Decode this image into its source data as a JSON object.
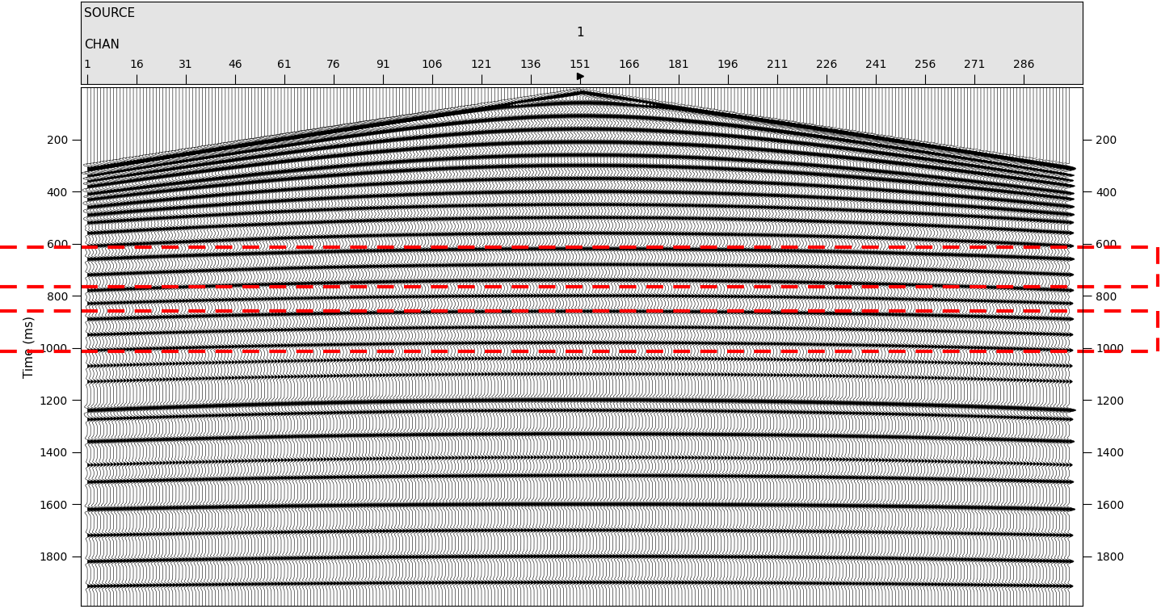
{
  "chart_data": {
    "type": "seismic_gather",
    "source_label": "SOURCE",
    "source": 1,
    "source_channel": 151,
    "xlabel": "CHAN",
    "ylabel": "Time (ms)",
    "n_channels": 300,
    "xlim": [
      -1,
      304
    ],
    "xticks": [
      1,
      16,
      31,
      46,
      61,
      76,
      91,
      106,
      121,
      136,
      151,
      166,
      181,
      196,
      211,
      226,
      241,
      256,
      271,
      286
    ],
    "ylim": [
      1990,
      0
    ],
    "yticks": [
      200,
      400,
      600,
      800,
      1000,
      1200,
      1400,
      1600,
      1800
    ],
    "first_break": {
      "t_center": 20,
      "t_edge": 310,
      "amplitude": 1.0
    },
    "reflections": [
      {
        "t0": 60,
        "t_edge": 320,
        "amplitude": 1.0
      },
      {
        "t0": 110,
        "t_edge": 340,
        "amplitude": 1.0
      },
      {
        "t0": 160,
        "t_edge": 360,
        "amplitude": 0.9
      },
      {
        "t0": 210,
        "t_edge": 380,
        "amplitude": 0.9
      },
      {
        "t0": 260,
        "t_edge": 410,
        "amplitude": 0.8
      },
      {
        "t0": 300,
        "t_edge": 430,
        "amplitude": 0.8
      },
      {
        "t0": 350,
        "t_edge": 460,
        "amplitude": 0.7
      },
      {
        "t0": 400,
        "t_edge": 490,
        "amplitude": 0.7
      },
      {
        "t0": 450,
        "t_edge": 520,
        "amplitude": 0.6
      },
      {
        "t0": 500,
        "t_edge": 560,
        "amplitude": 0.6
      },
      {
        "t0": 560,
        "t_edge": 610,
        "amplitude": 0.6
      },
      {
        "t0": 620,
        "t_edge": 660,
        "amplitude": 0.7
      },
      {
        "t0": 680,
        "t_edge": 720,
        "amplitude": 0.6
      },
      {
        "t0": 740,
        "t_edge": 780,
        "amplitude": 0.6
      },
      {
        "t0": 800,
        "t_edge": 830,
        "amplitude": 0.5
      },
      {
        "t0": 860,
        "t_edge": 890,
        "amplitude": 0.6
      },
      {
        "t0": 920,
        "t_edge": 950,
        "amplitude": 0.5
      },
      {
        "t0": 980,
        "t_edge": 1010,
        "amplitude": 0.5
      },
      {
        "t0": 1040,
        "t_edge": 1070,
        "amplitude": 0.4
      },
      {
        "t0": 1100,
        "t_edge": 1130,
        "amplitude": 0.4
      },
      {
        "t0": 1200,
        "t_edge": 1240,
        "amplitude": 0.9
      },
      {
        "t0": 1240,
        "t_edge": 1275,
        "amplitude": 0.5
      },
      {
        "t0": 1330,
        "t_edge": 1360,
        "amplitude": 0.7
      },
      {
        "t0": 1420,
        "t_edge": 1450,
        "amplitude": 0.4
      },
      {
        "t0": 1490,
        "t_edge": 1515,
        "amplitude": 0.6
      },
      {
        "t0": 1600,
        "t_edge": 1620,
        "amplitude": 0.8
      },
      {
        "t0": 1700,
        "t_edge": 1720,
        "amplitude": 0.5
      },
      {
        "t0": 1800,
        "t_edge": 1820,
        "amplitude": 0.6
      },
      {
        "t0": 1900,
        "t_edge": 1915,
        "amplitude": 0.5
      }
    ],
    "highlight_windows": [
      [
        615,
        765
      ],
      [
        860,
        1015
      ]
    ],
    "color": "#000000"
  }
}
